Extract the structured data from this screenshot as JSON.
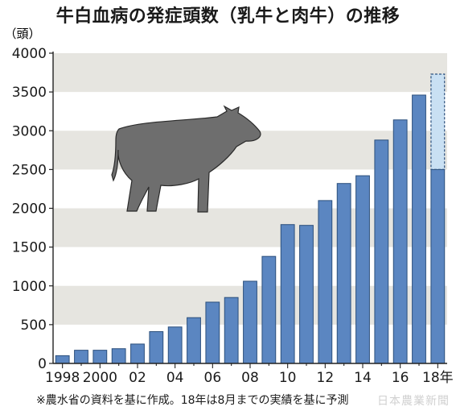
{
  "title": "牛白血病の発症頭数（乳牛と肉牛）の推移",
  "footnote": "※農水省の資料を基に作成。18年は8月までの実績を基に予測",
  "watermark": "日本農業新聞",
  "colors": {
    "bar": "#5b86c1",
    "bar_stroke": "#2b4f7c",
    "forecast_fill": "#c9e0f3",
    "band": "#e6e5e0",
    "axis": "#222222"
  },
  "icon": "cow-silhouette",
  "chart_data": {
    "type": "bar",
    "y_unit_label": "（頭）",
    "ylim": [
      0,
      4000
    ],
    "yticks": [
      0,
      500,
      1000,
      1500,
      2000,
      2500,
      3000,
      3500,
      4000
    ],
    "ytick_labels": [
      "0",
      "500",
      "1000",
      "1500",
      "2000",
      "2500",
      "3000",
      "3500",
      "4000"
    ],
    "categories": [
      "1998",
      "1999",
      "2000",
      "2001",
      "2002",
      "2003",
      "2004",
      "2005",
      "2006",
      "2007",
      "2008",
      "2009",
      "2010",
      "2011",
      "2012",
      "2013",
      "2014",
      "2015",
      "2016",
      "2017",
      "2018"
    ],
    "values": [
      100,
      170,
      170,
      190,
      250,
      410,
      470,
      590,
      790,
      850,
      1060,
      1380,
      1790,
      1780,
      2100,
      2320,
      2420,
      2880,
      3140,
      3460,
      2500
    ],
    "forecast": {
      "category": "2018",
      "value": 3730
    },
    "x_tick_labels": [
      {
        "index": 0,
        "label": "1998"
      },
      {
        "index": 2,
        "label": "2000"
      },
      {
        "index": 4,
        "label": "02"
      },
      {
        "index": 6,
        "label": "04"
      },
      {
        "index": 8,
        "label": "06"
      },
      {
        "index": 10,
        "label": "08"
      },
      {
        "index": 12,
        "label": "10"
      },
      {
        "index": 14,
        "label": "12"
      },
      {
        "index": 16,
        "label": "14"
      },
      {
        "index": 18,
        "label": "16"
      },
      {
        "index": 20,
        "label": "18年"
      }
    ],
    "grid_bands": true,
    "legend": "none"
  }
}
